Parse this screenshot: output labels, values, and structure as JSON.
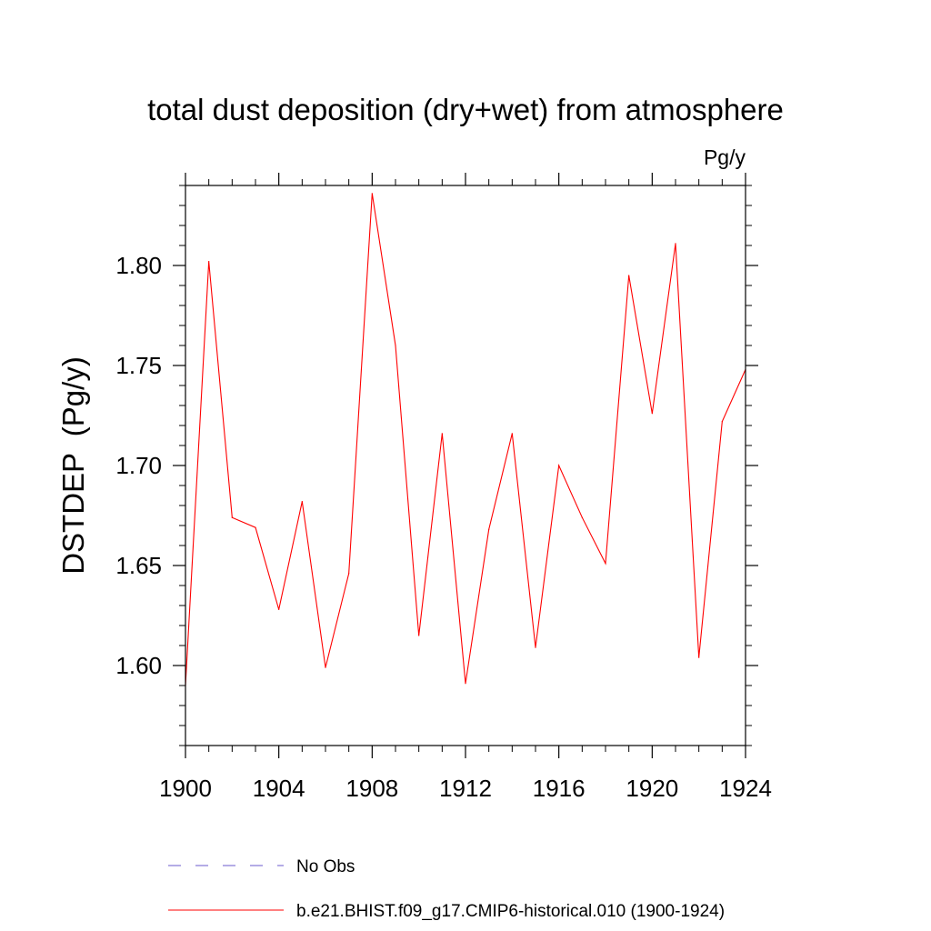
{
  "chart_data": {
    "type": "line",
    "title": "total dust deposition (dry+wet) from atmosphere",
    "units_label": "Pg/y",
    "ylabel": "DSTDEP  (Pg/y)",
    "xlabel": "",
    "xlim": [
      1900,
      1924
    ],
    "ylim": [
      1.56,
      1.84
    ],
    "x_ticks": [
      1900,
      1904,
      1908,
      1912,
      1916,
      1920,
      1924
    ],
    "x_tick_labels": [
      "1900",
      "1904",
      "1908",
      "1912",
      "1916",
      "1920",
      "1924"
    ],
    "y_ticks": [
      1.6,
      1.65,
      1.7,
      1.75,
      1.8
    ],
    "y_tick_labels": [
      "1.60",
      "1.65",
      "1.70",
      "1.75",
      "1.80"
    ],
    "grid": false,
    "legend_position": "bottom",
    "series": [
      {
        "name": "No Obs",
        "color": "#6a5acd",
        "style": "dashed",
        "x": [],
        "values": []
      },
      {
        "name": "b.e21.BHIST.f09_g17.CMIP6-historical.010 (1900-1924)",
        "color": "#ff0000",
        "style": "solid",
        "x": [
          1900,
          1901,
          1902,
          1903,
          1904,
          1905,
          1906,
          1907,
          1908,
          1909,
          1910,
          1911,
          1912,
          1913,
          1914,
          1915,
          1916,
          1917,
          1918,
          1919,
          1920,
          1921,
          1922,
          1923,
          1924
        ],
        "values": [
          1.59,
          1.802,
          1.674,
          1.669,
          1.628,
          1.682,
          1.599,
          1.646,
          1.836,
          1.76,
          1.615,
          1.716,
          1.591,
          1.668,
          1.716,
          1.609,
          1.7,
          1.674,
          1.651,
          1.795,
          1.726,
          1.811,
          1.604,
          1.722,
          1.748
        ]
      }
    ]
  }
}
